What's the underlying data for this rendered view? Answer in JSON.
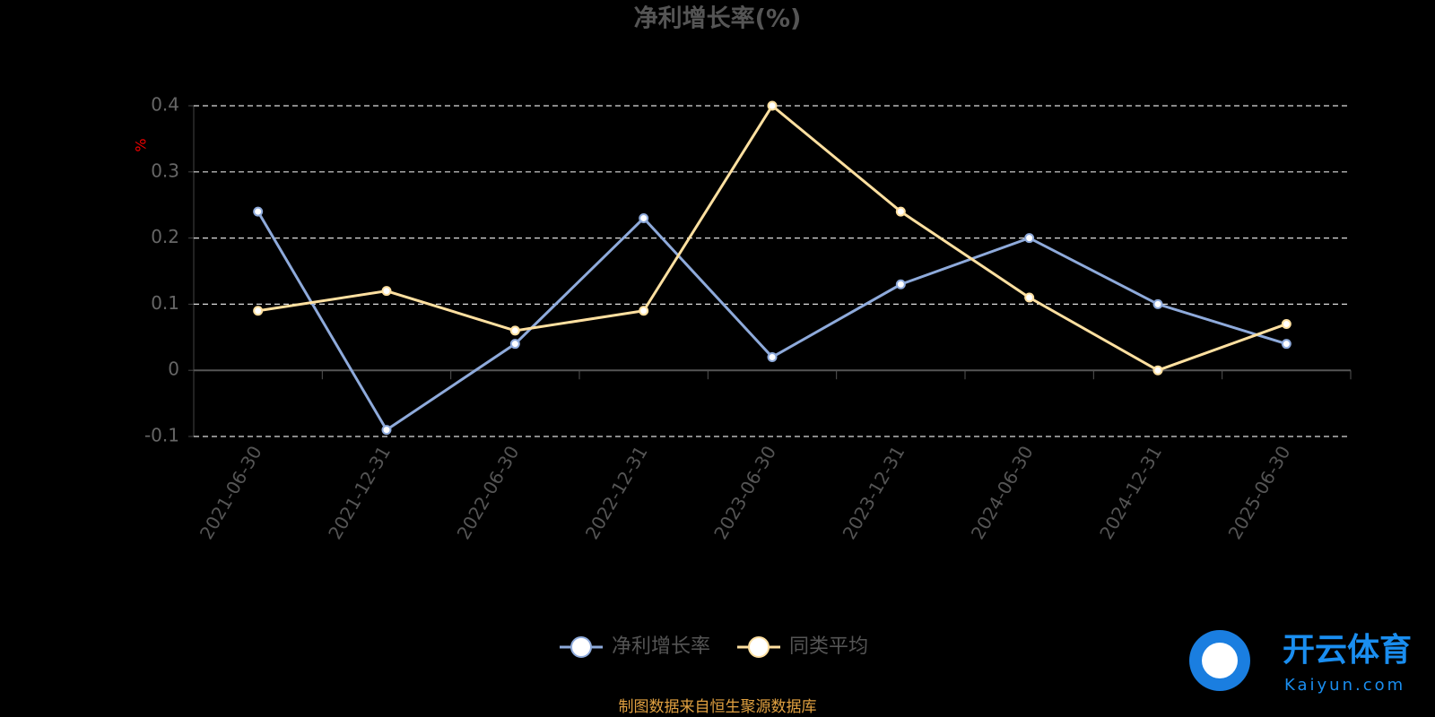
{
  "chart_data": {
    "type": "line",
    "title": "净利增长率(%)",
    "y_label": "%",
    "categories": [
      "2021-06-30",
      "2021-12-31",
      "2022-06-30",
      "2022-12-31",
      "2023-06-30",
      "2023-12-31",
      "2024-06-30",
      "2024-12-31",
      "2025-06-30"
    ],
    "series": [
      {
        "name": "净利增长率",
        "color": "#8eaadb",
        "values": [
          0.24,
          -0.09,
          0.04,
          0.23,
          0.02,
          0.13,
          0.2,
          0.1,
          0.04
        ]
      },
      {
        "name": "同类平均",
        "color": "#ffe0a0",
        "values": [
          0.09,
          0.12,
          0.06,
          0.09,
          0.4,
          0.24,
          0.11,
          0.0,
          0.07
        ]
      }
    ],
    "ylim": [
      -0.1,
      0.4
    ],
    "yticks": [
      -0.1,
      0,
      0.1,
      0.2,
      0.3,
      0.4
    ],
    "grid": true,
    "legend": "bottom",
    "source": "制图数据来自恒生聚源数据库",
    "watermark": {
      "name": "开云体育",
      "site": "Kaiyun.com"
    }
  }
}
